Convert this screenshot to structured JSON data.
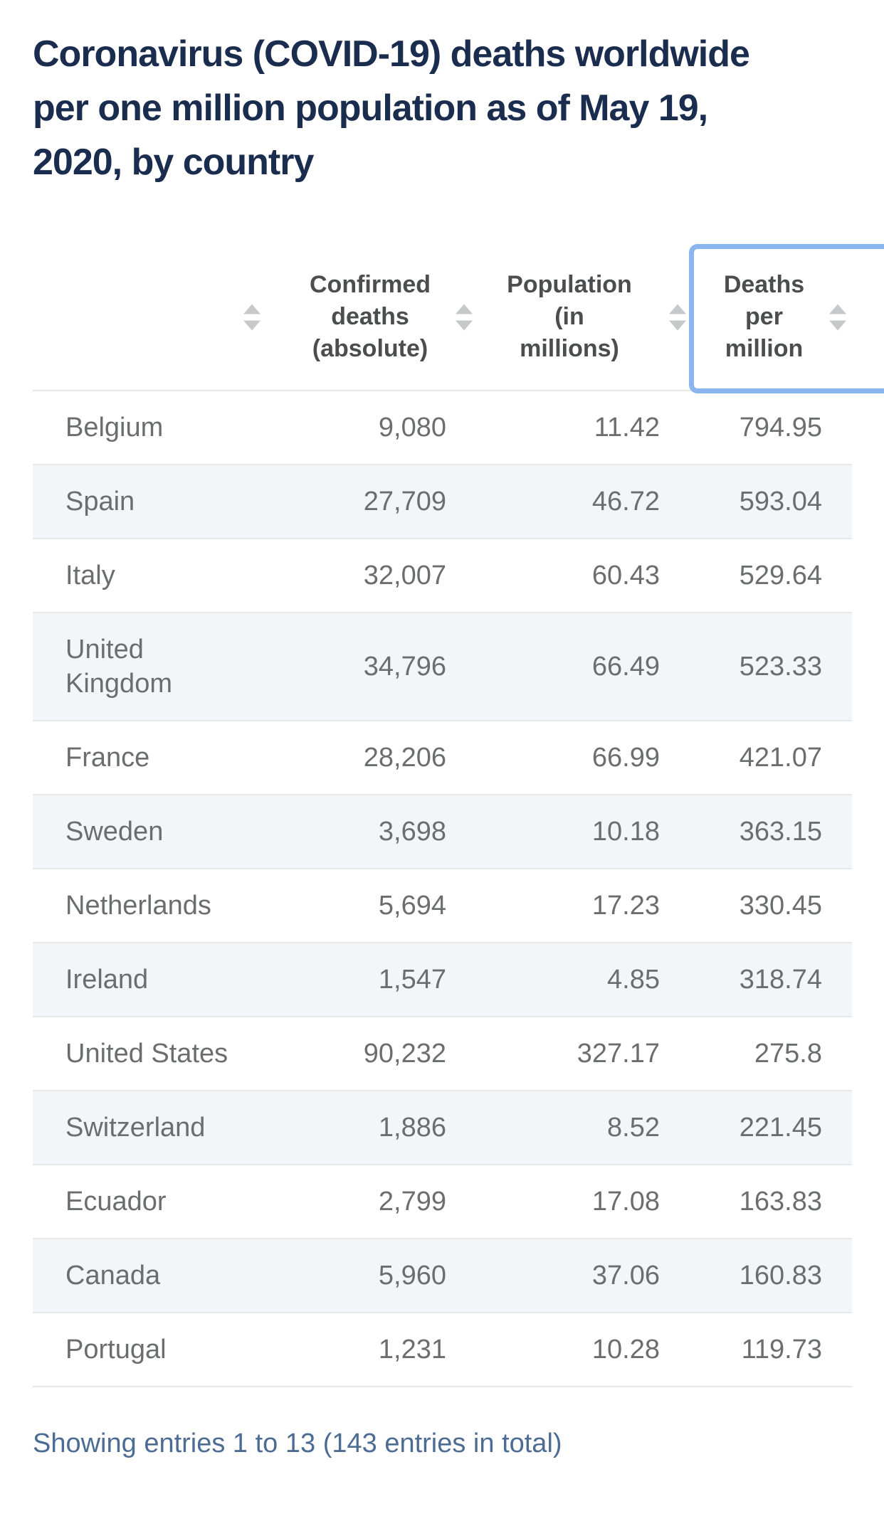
{
  "title": "Coronavirus (COVID-19) deaths worldwide\nper one million population as of May 19,\n2020, by country",
  "table": {
    "columns": [
      {
        "key": "country",
        "label": ""
      },
      {
        "key": "deaths",
        "label": "Confirmed\ndeaths\n(absolute)"
      },
      {
        "key": "population",
        "label": "Population\n(in\nmillions)"
      },
      {
        "key": "per_million",
        "label": "Deaths\nper\nmillion",
        "highlighted": true
      }
    ],
    "rows": [
      {
        "country": "Belgium",
        "deaths": "9,080",
        "population": "11.42",
        "per_million": "794.95"
      },
      {
        "country": "Spain",
        "deaths": "27,709",
        "population": "46.72",
        "per_million": "593.04"
      },
      {
        "country": "Italy",
        "deaths": "32,007",
        "population": "60.43",
        "per_million": "529.64"
      },
      {
        "country": "United Kingdom",
        "deaths": "34,796",
        "population": "66.49",
        "per_million": "523.33"
      },
      {
        "country": "France",
        "deaths": "28,206",
        "population": "66.99",
        "per_million": "421.07"
      },
      {
        "country": "Sweden",
        "deaths": "3,698",
        "population": "10.18",
        "per_million": "363.15"
      },
      {
        "country": "Netherlands",
        "deaths": "5,694",
        "population": "17.23",
        "per_million": "330.45"
      },
      {
        "country": "Ireland",
        "deaths": "1,547",
        "population": "4.85",
        "per_million": "318.74"
      },
      {
        "country": "United States",
        "deaths": "90,232",
        "population": "327.17",
        "per_million": "275.8"
      },
      {
        "country": "Switzerland",
        "deaths": "1,886",
        "population": "8.52",
        "per_million": "221.45"
      },
      {
        "country": "Ecuador",
        "deaths": "2,799",
        "population": "17.08",
        "per_million": "163.83"
      },
      {
        "country": "Canada",
        "deaths": "5,960",
        "population": "37.06",
        "per_million": "160.83"
      },
      {
        "country": "Portugal",
        "deaths": "1,231",
        "population": "10.28",
        "per_million": "119.73"
      }
    ]
  },
  "footer": {
    "status": "Showing entries 1 to 13 (143 entries in total)"
  },
  "icons": {
    "sort": "sort-arrows-up-down"
  },
  "colors": {
    "title": "#1b2d4f",
    "header_text": "#4c4d4f",
    "cell_text": "#6c6d6f",
    "stripe": "#f4f5f8",
    "row_line": "#e7e8ea",
    "highlight_border": "#89b6f0",
    "footer_text": "#4d6c93",
    "sort_arrow": "#c7c8ca"
  }
}
